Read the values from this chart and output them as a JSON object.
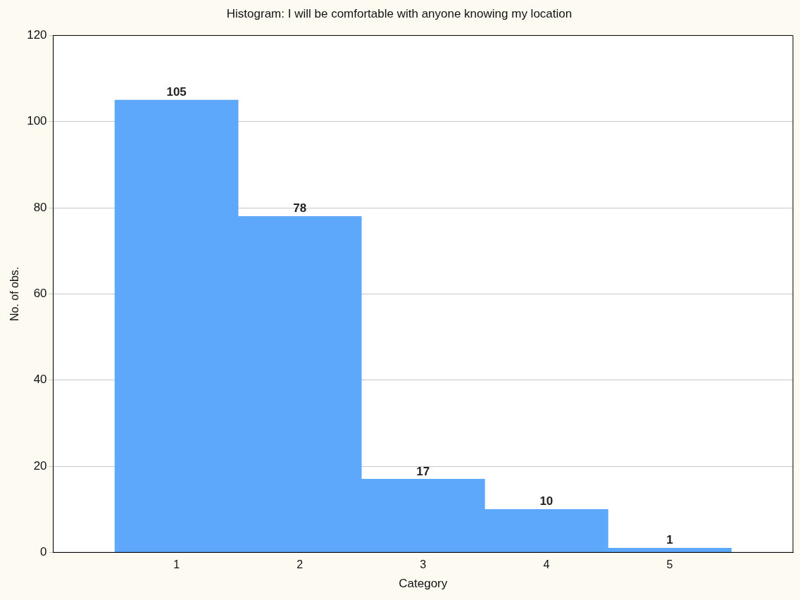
{
  "chart_data": {
    "type": "histogram",
    "title": "Histogram: I will be comfortable with anyone knowing my location",
    "xlabel": "Category",
    "ylabel": "No. of obs.",
    "bins": [
      0.5,
      1.5,
      2.5,
      3.5,
      4.5,
      5.5
    ],
    "values": [
      105,
      78,
      17,
      10,
      1
    ],
    "color": "#5ea8fb",
    "xlim": [
      0,
      6
    ],
    "xticks": [
      1,
      2,
      3,
      4,
      5
    ],
    "ylim": [
      0,
      120
    ],
    "yticks": [
      0,
      20,
      40,
      60,
      80,
      100,
      120
    ],
    "grid": "y",
    "data_labels": true
  }
}
